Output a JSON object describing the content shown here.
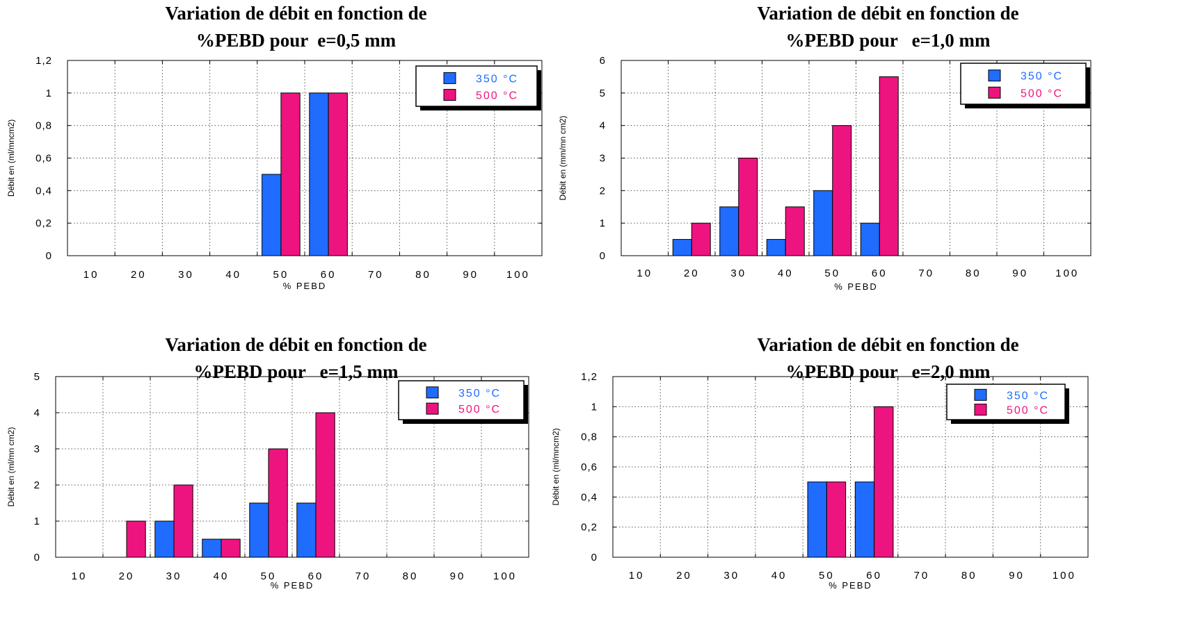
{
  "chart_data": [
    {
      "type": "bar",
      "title_line1": "Variation de débit en fonction de",
      "title_line2": "%PEBD pour  e=0,5 mm",
      "xlabel": "% PEBD",
      "ylabel": "Débit en (ml/mncm2)",
      "categories": [
        "10",
        "20",
        "30",
        "40",
        "50",
        "60",
        "70",
        "80",
        "90",
        "100"
      ],
      "ylim": [
        0,
        1.2
      ],
      "yticks": [
        "0",
        "0,2",
        "0,4",
        "0,6",
        "0,8",
        "1",
        "1,2"
      ],
      "ytick_values": [
        0,
        0.2,
        0.4,
        0.6,
        0.8,
        1.0,
        1.2
      ],
      "grid": true,
      "legend_position": "top-right",
      "series": [
        {
          "name": "350 °C",
          "color": "#1f6cff",
          "values": [
            0,
            0,
            0,
            0,
            0.5,
            1.0,
            0,
            0,
            0,
            0
          ]
        },
        {
          "name": "500 °C",
          "color": "#ee1480",
          "values": [
            0,
            0,
            0,
            0,
            1.0,
            1.0,
            0,
            0,
            0,
            0
          ]
        }
      ]
    },
    {
      "type": "bar",
      "title_line1": "Variation de débit en fonction de",
      "title_line2": "%PEBD pour   e=1,0 mm",
      "xlabel": "% PEBD",
      "ylabel": "Débit  en (mm/mn cm2)",
      "categories": [
        "10",
        "20",
        "30",
        "40",
        "50",
        "60",
        "70",
        "80",
        "90",
        "100"
      ],
      "ylim": [
        0,
        6
      ],
      "yticks": [
        "0",
        "1",
        "2",
        "3",
        "4",
        "5",
        "6"
      ],
      "ytick_values": [
        0,
        1,
        2,
        3,
        4,
        5,
        6
      ],
      "grid": true,
      "legend_position": "top-right",
      "series": [
        {
          "name": "350 °C",
          "color": "#1f6cff",
          "values": [
            0,
            0.5,
            1.5,
            0.5,
            2.0,
            1.0,
            0,
            0,
            0,
            0
          ]
        },
        {
          "name": "500 °C",
          "color": "#ee1480",
          "values": [
            0,
            1.0,
            3.0,
            1.5,
            4.0,
            5.5,
            0,
            0,
            0,
            0
          ]
        }
      ]
    },
    {
      "type": "bar",
      "title_line1": "Variation de débit en fonction de",
      "title_line2": "%PEBD pour   e=1,5 mm",
      "xlabel": "% PEBD",
      "ylabel": "Débit en (ml/mn cm2)",
      "categories": [
        "10",
        "20",
        "30",
        "40",
        "50",
        "60",
        "70",
        "80",
        "90",
        "100"
      ],
      "ylim": [
        0,
        5
      ],
      "yticks": [
        "0",
        "1",
        "2",
        "3",
        "4",
        "5"
      ],
      "ytick_values": [
        0,
        1,
        2,
        3,
        4,
        5
      ],
      "grid": true,
      "legend_position": "top-right",
      "series": [
        {
          "name": "350 °C",
          "color": "#1f6cff",
          "values": [
            0,
            0,
            1.0,
            0.5,
            1.5,
            1.5,
            0,
            0,
            0,
            0
          ]
        },
        {
          "name": "500 °C",
          "color": "#ee1480",
          "values": [
            0,
            1.0,
            2.0,
            0.5,
            3.0,
            4.0,
            0,
            0,
            0,
            0
          ]
        }
      ]
    },
    {
      "type": "bar",
      "title_line1": "Variation de débit en fonction de",
      "title_line2": "%PEBD pour   e=2,0 mm",
      "xlabel": "% PEBD",
      "ylabel": "Débit en (ml/mncm2)",
      "categories": [
        "10",
        "20",
        "30",
        "40",
        "50",
        "60",
        "70",
        "80",
        "90",
        "100"
      ],
      "ylim": [
        0,
        1.2
      ],
      "yticks": [
        "0",
        "0,2",
        "0,4",
        "0,6",
        "0,8",
        "1",
        "1,2"
      ],
      "ytick_values": [
        0,
        0.2,
        0.4,
        0.6,
        0.8,
        1.0,
        1.2
      ],
      "grid": true,
      "legend_position": "top-right",
      "series": [
        {
          "name": "350 °C",
          "color": "#1f6cff",
          "values": [
            0,
            0,
            0,
            0,
            0.5,
            0.5,
            0,
            0,
            0,
            0
          ]
        },
        {
          "name": "500 °C",
          "color": "#ee1480",
          "values": [
            0,
            0,
            0,
            0,
            0.5,
            1.0,
            0,
            0,
            0,
            0
          ]
        }
      ]
    }
  ]
}
